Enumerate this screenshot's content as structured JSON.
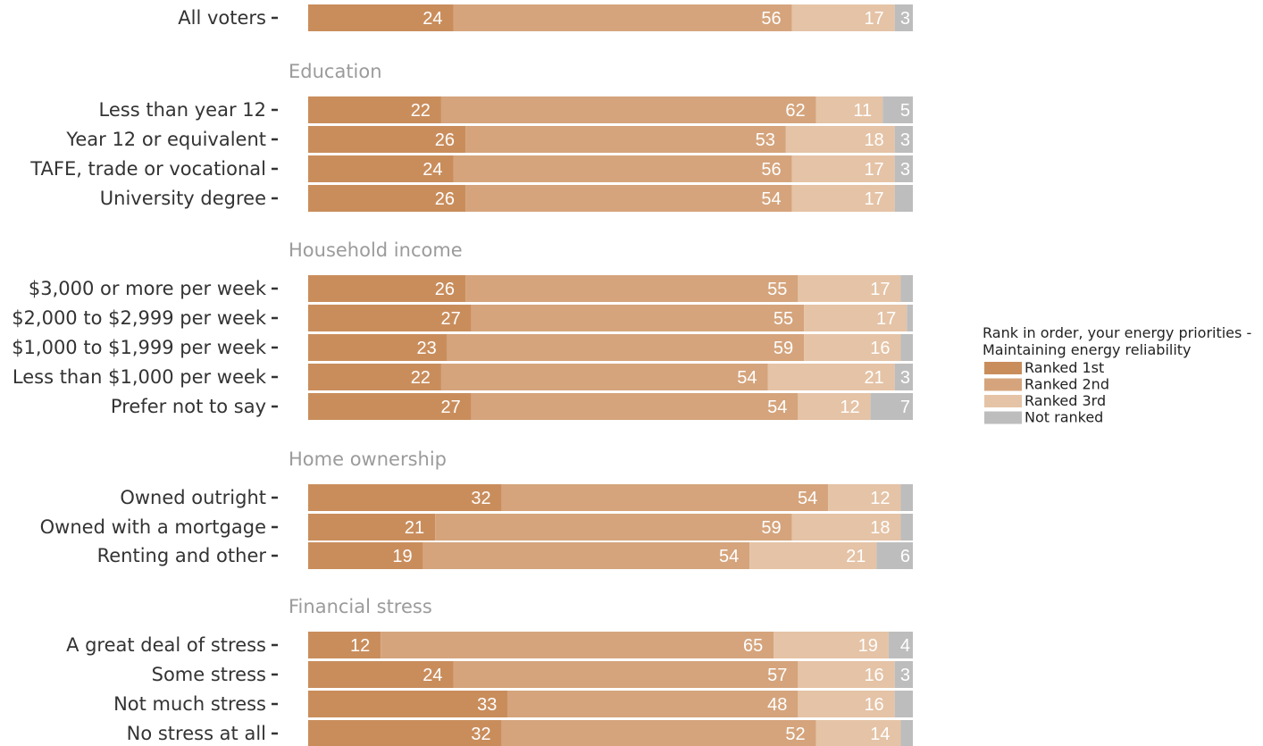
{
  "chart_data": {
    "type": "bar",
    "orientation": "horizontal",
    "stacked": true,
    "xlim": [
      0,
      100
    ],
    "legend": {
      "title_lines": [
        "Rank in order, your energy priorities -",
        "Maintaining energy reliability"
      ],
      "placement": "right"
    },
    "series": [
      {
        "name": "Ranked 1st",
        "color": "#c98d5c"
      },
      {
        "name": "Ranked 2nd",
        "color": "#d5a47c"
      },
      {
        "name": "Ranked 3rd",
        "color": "#e5c3a6"
      },
      {
        "name": "Not ranked",
        "color": "#bdbdbd"
      }
    ],
    "groups": [
      {
        "title": "",
        "rows": [
          {
            "label": "All voters",
            "values": [
              24,
              56,
              17,
              3
            ],
            "shown": [
              "24",
              "56",
              "17",
              "3"
            ]
          }
        ]
      },
      {
        "title": "Education",
        "rows": [
          {
            "label": "Less than year 12",
            "values": [
              22,
              62,
              11,
              5
            ],
            "shown": [
              "22",
              "62",
              "11",
              "5"
            ]
          },
          {
            "label": "Year 12 or equivalent",
            "values": [
              26,
              53,
              18,
              3
            ],
            "shown": [
              "26",
              "53",
              "18",
              "3"
            ]
          },
          {
            "label": "TAFE, trade or vocational",
            "values": [
              24,
              56,
              17,
              3
            ],
            "shown": [
              "24",
              "56",
              "17",
              "3"
            ]
          },
          {
            "label": "University degree",
            "values": [
              26,
              54,
              17,
              3
            ],
            "shown": [
              "26",
              "54",
              "17",
              ""
            ]
          }
        ]
      },
      {
        "title": "Household income",
        "rows": [
          {
            "label": "$3,000 or more per week",
            "values": [
              26,
              55,
              17,
              2
            ],
            "shown": [
              "26",
              "55",
              "17",
              ""
            ]
          },
          {
            "label": "$2,000 to $2,999 per week",
            "values": [
              27,
              55,
              17,
              1
            ],
            "shown": [
              "27",
              "55",
              "17",
              ""
            ]
          },
          {
            "label": "$1,000 to $1,999 per week",
            "values": [
              23,
              59,
              16,
              2
            ],
            "shown": [
              "23",
              "59",
              "16",
              ""
            ]
          },
          {
            "label": "Less than $1,000 per week",
            "values": [
              22,
              54,
              21,
              3
            ],
            "shown": [
              "22",
              "54",
              "21",
              "3"
            ]
          },
          {
            "label": "Prefer not to say",
            "values": [
              27,
              54,
              12,
              7
            ],
            "shown": [
              "27",
              "54",
              "12",
              "7"
            ]
          }
        ]
      },
      {
        "title": "Home ownership",
        "rows": [
          {
            "label": "Owned outright",
            "values": [
              32,
              54,
              12,
              2
            ],
            "shown": [
              "32",
              "54",
              "12",
              ""
            ]
          },
          {
            "label": "Owned with a mortgage",
            "values": [
              21,
              59,
              18,
              2
            ],
            "shown": [
              "21",
              "59",
              "18",
              ""
            ]
          },
          {
            "label": "Renting and other",
            "values": [
              19,
              54,
              21,
              6
            ],
            "shown": [
              "19",
              "54",
              "21",
              "6"
            ]
          }
        ]
      },
      {
        "title": "Financial stress",
        "rows": [
          {
            "label": "A great deal of stress",
            "values": [
              12,
              65,
              19,
              4
            ],
            "shown": [
              "12",
              "65",
              "19",
              "4"
            ]
          },
          {
            "label": "Some stress",
            "values": [
              24,
              57,
              16,
              3
            ],
            "shown": [
              "24",
              "57",
              "16",
              "3"
            ]
          },
          {
            "label": "Not much stress",
            "values": [
              33,
              48,
              16,
              3
            ],
            "shown": [
              "33",
              "48",
              "16",
              ""
            ]
          },
          {
            "label": "No stress at all",
            "values": [
              32,
              52,
              14,
              2
            ],
            "shown": [
              "32",
              "52",
              "14",
              ""
            ]
          }
        ]
      }
    ]
  }
}
